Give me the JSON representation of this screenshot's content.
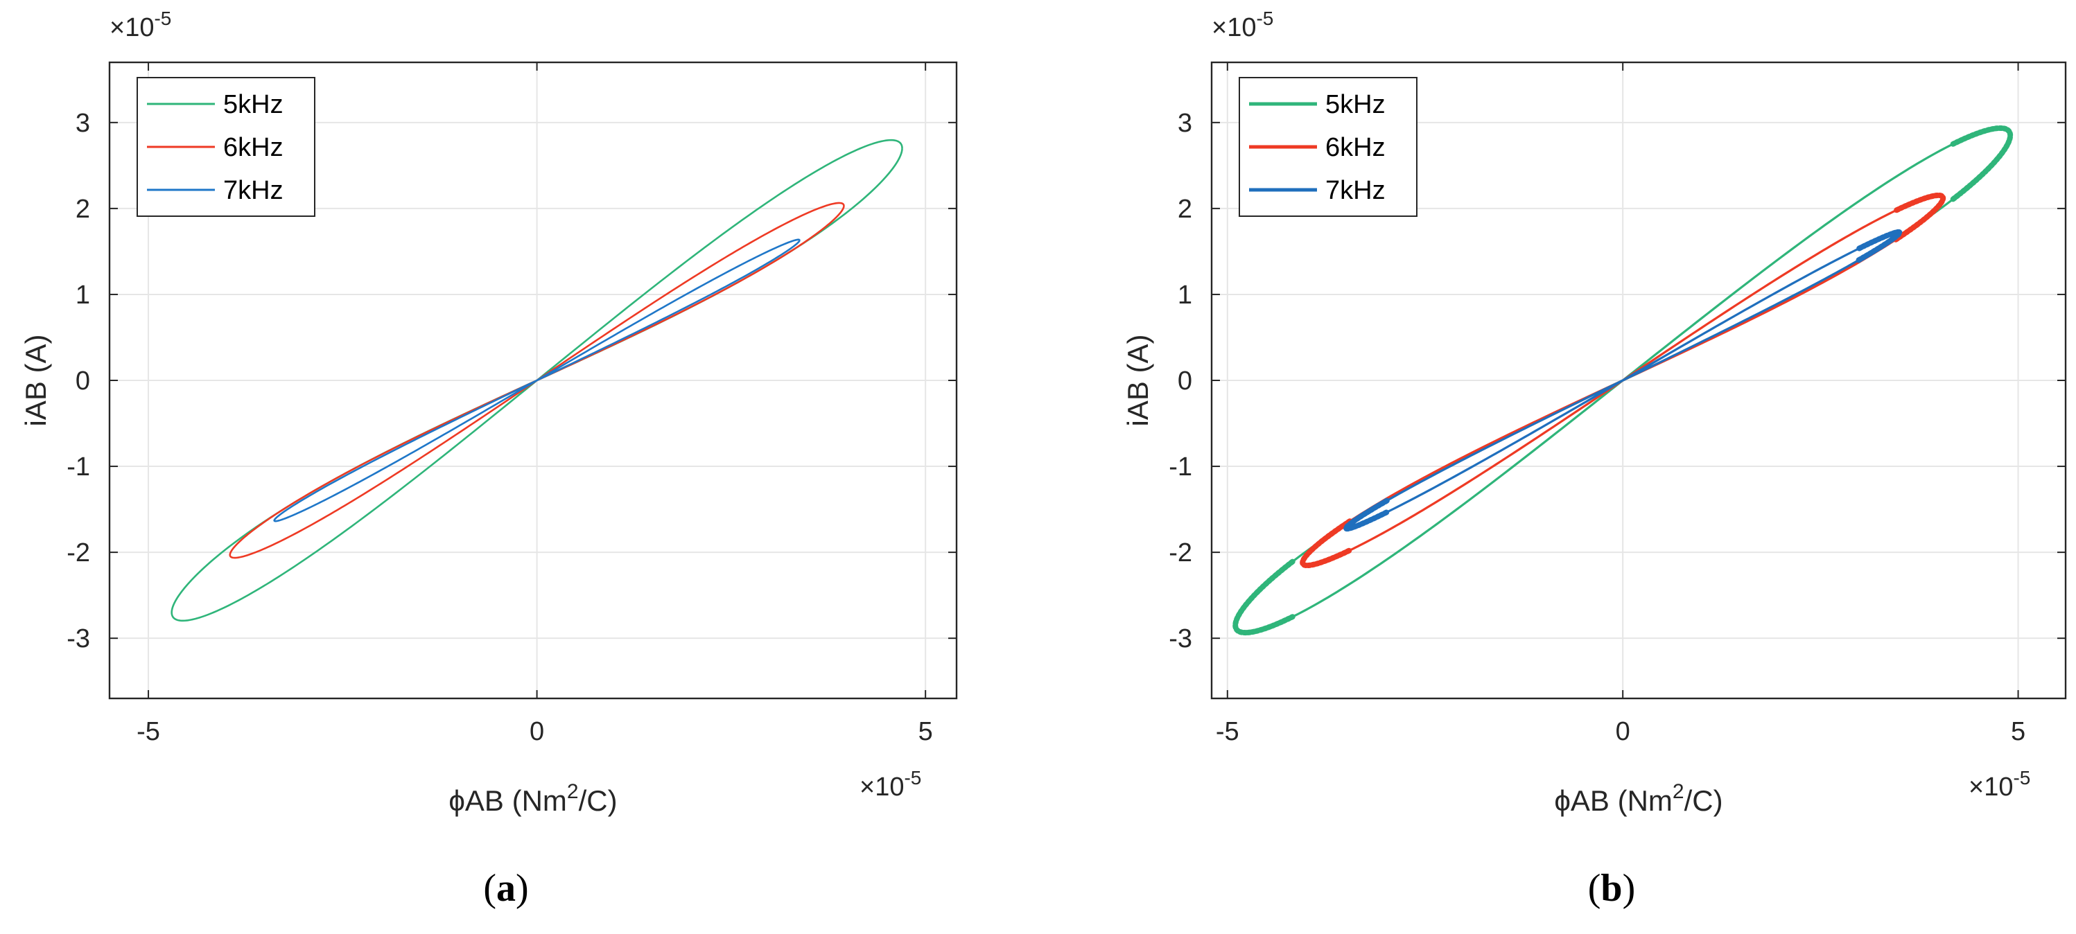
{
  "chart_data": [
    {
      "type": "line",
      "panel_id": "a",
      "caption_open": "(",
      "caption_letter": "a",
      "caption_close": ")",
      "xlabel_pre": "ϕAB (Nm",
      "xlabel_sup": "2",
      "xlabel_post": "/C)",
      "ylabel": "iAB (A)",
      "x_exponent_base": "×10",
      "x_exponent_power": "-5",
      "y_exponent_base": "×10",
      "y_exponent_power": "-5",
      "xlim": [
        -5.5,
        5.4
      ],
      "ylim": [
        -3.7,
        3.7
      ],
      "xticks": [
        -5,
        0,
        5
      ],
      "xtick_labels": [
        "-5",
        "0",
        "5"
      ],
      "yticks": [
        -3,
        -2,
        -1,
        0,
        1,
        2,
        3
      ],
      "ytick_labels": [
        "-3",
        "-2",
        "-1",
        "0",
        "1",
        "2",
        "3"
      ],
      "grid": true,
      "legend_position": "top-left",
      "series": [
        {
          "name": "5kHz",
          "color": "#2fb57a",
          "tip_x": 4.7,
          "tip_y": 2.7,
          "width": 0.75,
          "marker": false
        },
        {
          "name": "6kHz",
          "color": "#ee3a24",
          "tip_x": 3.95,
          "tip_y": 2.03,
          "width": 0.38,
          "marker": false
        },
        {
          "name": "7kHz",
          "color": "#1f77c8",
          "tip_x": 3.38,
          "tip_y": 1.63,
          "width": 0.16,
          "marker": false
        }
      ]
    },
    {
      "type": "line",
      "panel_id": "b",
      "caption_open": "(",
      "caption_letter": "b",
      "caption_close": ")",
      "xlabel_pre": "ϕAB (Nm",
      "xlabel_sup": "2",
      "xlabel_post": "/C)",
      "ylabel": "iAB (A)",
      "x_exponent_base": "×10",
      "x_exponent_power": "-5",
      "y_exponent_base": "×10",
      "y_exponent_power": "-5",
      "xlim": [
        -5.2,
        5.6
      ],
      "ylim": [
        -3.7,
        3.7
      ],
      "xticks": [
        -5,
        0,
        5
      ],
      "xtick_labels": [
        "-5",
        "0",
        "5"
      ],
      "yticks": [
        -3,
        -2,
        -1,
        0,
        1,
        2,
        3
      ],
      "ytick_labels": [
        "-3",
        "-2",
        "-1",
        "0",
        "1",
        "2",
        "3"
      ],
      "grid": true,
      "legend_position": "top-left",
      "series": [
        {
          "name": "5kHz",
          "color": "#2fb57a",
          "tip_x": 4.9,
          "tip_y": 2.85,
          "width": 0.72,
          "marker": true
        },
        {
          "name": "6kHz",
          "color": "#ee3a24",
          "tip_x": 4.05,
          "tip_y": 2.12,
          "width": 0.38,
          "marker": true
        },
        {
          "name": "7kHz",
          "color": "#1f6fbd",
          "tip_x": 3.5,
          "tip_y": 1.72,
          "width": 0.15,
          "marker": true
        }
      ]
    }
  ]
}
